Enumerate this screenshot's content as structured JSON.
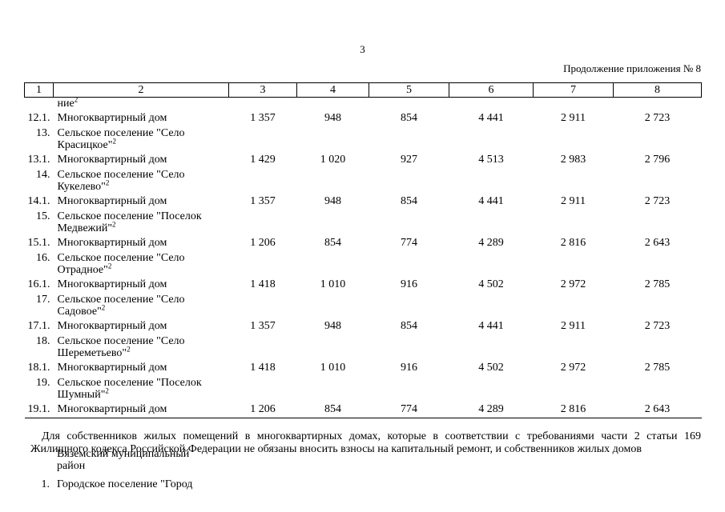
{
  "page": {
    "number": "3",
    "continuation": "Продолжение приложения № 8"
  },
  "table": {
    "column_numbers": [
      "1",
      "2",
      "3",
      "4",
      "5",
      "6",
      "7",
      "8"
    ],
    "rows": [
      {
        "num": "",
        "name": [
          "ние"
        ],
        "sup": "2"
      },
      {
        "num": "12.1.",
        "name": [
          "Многоквартирный дом"
        ],
        "values": [
          "1 357",
          "948",
          "854",
          "4 441",
          "2 911",
          "2 723"
        ]
      },
      {
        "num": "13.",
        "name": [
          "Сельское поселение \"Село",
          "Красицкое\""
        ],
        "sup": "2"
      },
      {
        "num": "13.1.",
        "name": [
          "Многоквартирный дом"
        ],
        "values": [
          "1 429",
          "1 020",
          "927",
          "4 513",
          "2 983",
          "2 796"
        ]
      },
      {
        "num": "14.",
        "name": [
          "Сельское поселение \"Село",
          "Кукелево\""
        ],
        "sup": "2"
      },
      {
        "num": "14.1.",
        "name": [
          "Многоквартирный дом"
        ],
        "values": [
          "1 357",
          "948",
          "854",
          "4 441",
          "2 911",
          "2 723"
        ]
      },
      {
        "num": "15.",
        "name": [
          "Сельское поселение \"Поселок",
          "Медвежий\""
        ],
        "sup": "2"
      },
      {
        "num": "15.1.",
        "name": [
          "Многоквартирный дом"
        ],
        "values": [
          "1 206",
          "854",
          "774",
          "4 289",
          "2 816",
          "2 643"
        ]
      },
      {
        "num": "16.",
        "name": [
          "Сельское поселение \"Село",
          "Отрадное\""
        ],
        "sup": "2"
      },
      {
        "num": "16.1.",
        "name": [
          "Многоквартирный дом"
        ],
        "values": [
          "1 418",
          "1 010",
          "916",
          "4 502",
          "2 972",
          "2 785"
        ]
      },
      {
        "num": "17.",
        "name": [
          "Сельское поселение \"Село",
          "Садовое\""
        ],
        "sup": "2"
      },
      {
        "num": "17.1.",
        "name": [
          "Многоквартирный дом"
        ],
        "values": [
          "1 357",
          "948",
          "854",
          "4 441",
          "2 911",
          "2 723"
        ]
      },
      {
        "num": "18.",
        "name": [
          "Сельское поселение \"Село",
          "Шереметьево\""
        ],
        "sup": "2"
      },
      {
        "num": "18.1.",
        "name": [
          "Многоквартирный дом"
        ],
        "values": [
          "1 418",
          "1 010",
          "916",
          "4 502",
          "2 972",
          "2 785"
        ]
      },
      {
        "num": "19.",
        "name": [
          "Сельское поселение \"Поселок",
          "Шумный\""
        ],
        "sup": "2"
      },
      {
        "num": "19.1.",
        "name": [
          "Многоквартирный дом"
        ],
        "values": [
          "1 206",
          "854",
          "774",
          "4 289",
          "2 816",
          "2 643"
        ]
      }
    ]
  },
  "footer": {
    "note": "Для собственников жилых помещений в многоквартирных домах, которые в соответствии с требованиями части 2 статьи 169 Жилищного кодекса Российской Федерации не обязаны вносить взносы на капитальный ремонт, и собственников жилых домов",
    "rows": [
      {
        "num": "",
        "name": [
          "Вяземский муниципальный",
          "район"
        ]
      },
      {
        "num": "1.",
        "name": [
          "Городское поселение \"Город"
        ]
      }
    ]
  }
}
